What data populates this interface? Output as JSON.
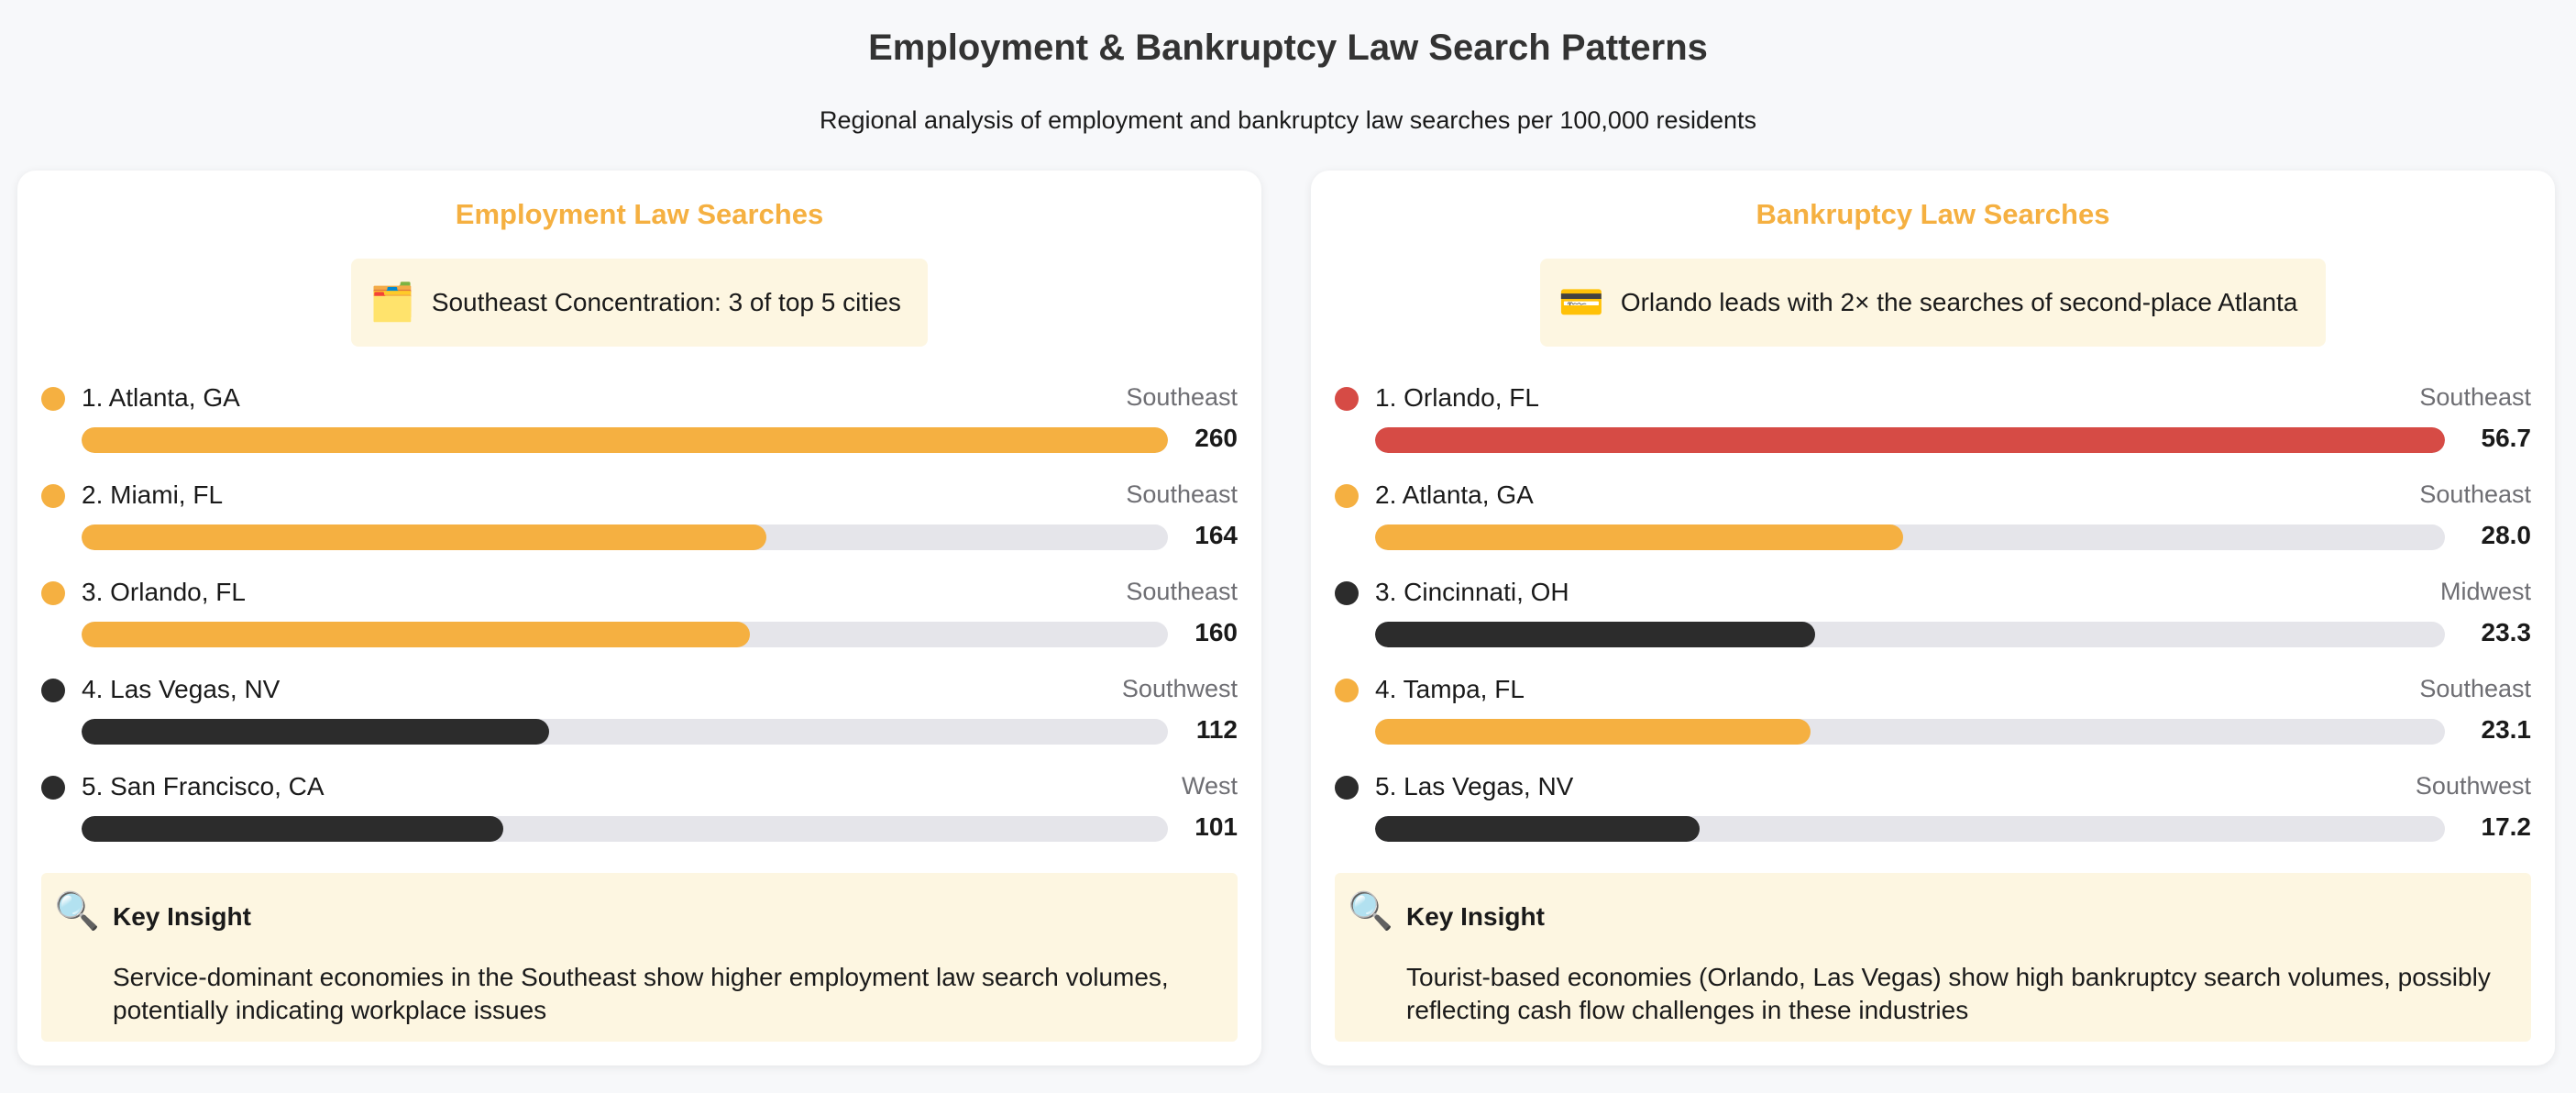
{
  "header": {
    "title": "Employment & Bankruptcy Law Search Patterns",
    "subtitle": "Regional analysis of employment and bankruptcy law searches per 100,000 residents"
  },
  "colors": {
    "southeast": "#f5b041",
    "other": "#2c2c2c",
    "leader": "#d64b45",
    "track": "#e5e5ea"
  },
  "panels": [
    {
      "title": "Employment Law Searches",
      "highlight_icon": "🗂️",
      "highlight_text": "Southeast Concentration: 3 of top 5 cities",
      "insight_icon": "🔍",
      "insight_title": "Key Insight",
      "insight_text": "Service-dominant economies in the Southeast show higher employment law search volumes, potentially indicating workplace issues"
    },
    {
      "title": "Bankruptcy Law Searches",
      "highlight_icon": "💳",
      "highlight_text": "Orlando leads with 2× the searches of second-place Atlanta",
      "insight_icon": "🔍",
      "insight_title": "Key Insight",
      "insight_text": "Tourist-based economies (Orlando, Las Vegas) show high bankruptcy search volumes, possibly reflecting cash flow challenges in these industries"
    }
  ],
  "chart_data": [
    {
      "type": "bar",
      "title": "Employment Law Searches",
      "max": 260,
      "categories": [
        "1. Atlanta, GA",
        "2. Miami, FL",
        "3. Orlando, FL",
        "4. Las Vegas, NV",
        "5. San Francisco, CA"
      ],
      "regions": [
        "Southeast",
        "Southeast",
        "Southeast",
        "Southwest",
        "West"
      ],
      "values": [
        260,
        164,
        160,
        112,
        101
      ],
      "value_labels": [
        "260",
        "164",
        "160",
        "112",
        "101"
      ],
      "colors": [
        "#f5b041",
        "#f5b041",
        "#f5b041",
        "#2c2c2c",
        "#2c2c2c"
      ]
    },
    {
      "type": "bar",
      "title": "Bankruptcy Law Searches",
      "max": 56.7,
      "categories": [
        "1. Orlando, FL",
        "2. Atlanta, GA",
        "3. Cincinnati, OH",
        "4. Tampa, FL",
        "5. Las Vegas, NV"
      ],
      "regions": [
        "Southeast",
        "Southeast",
        "Midwest",
        "Southeast",
        "Southwest"
      ],
      "values": [
        56.7,
        28.0,
        23.3,
        23.1,
        17.2
      ],
      "value_labels": [
        "56.7",
        "28.0",
        "23.3",
        "23.1",
        "17.2"
      ],
      "colors": [
        "#d64b45",
        "#f5b041",
        "#2c2c2c",
        "#f5b041",
        "#2c2c2c"
      ]
    }
  ]
}
